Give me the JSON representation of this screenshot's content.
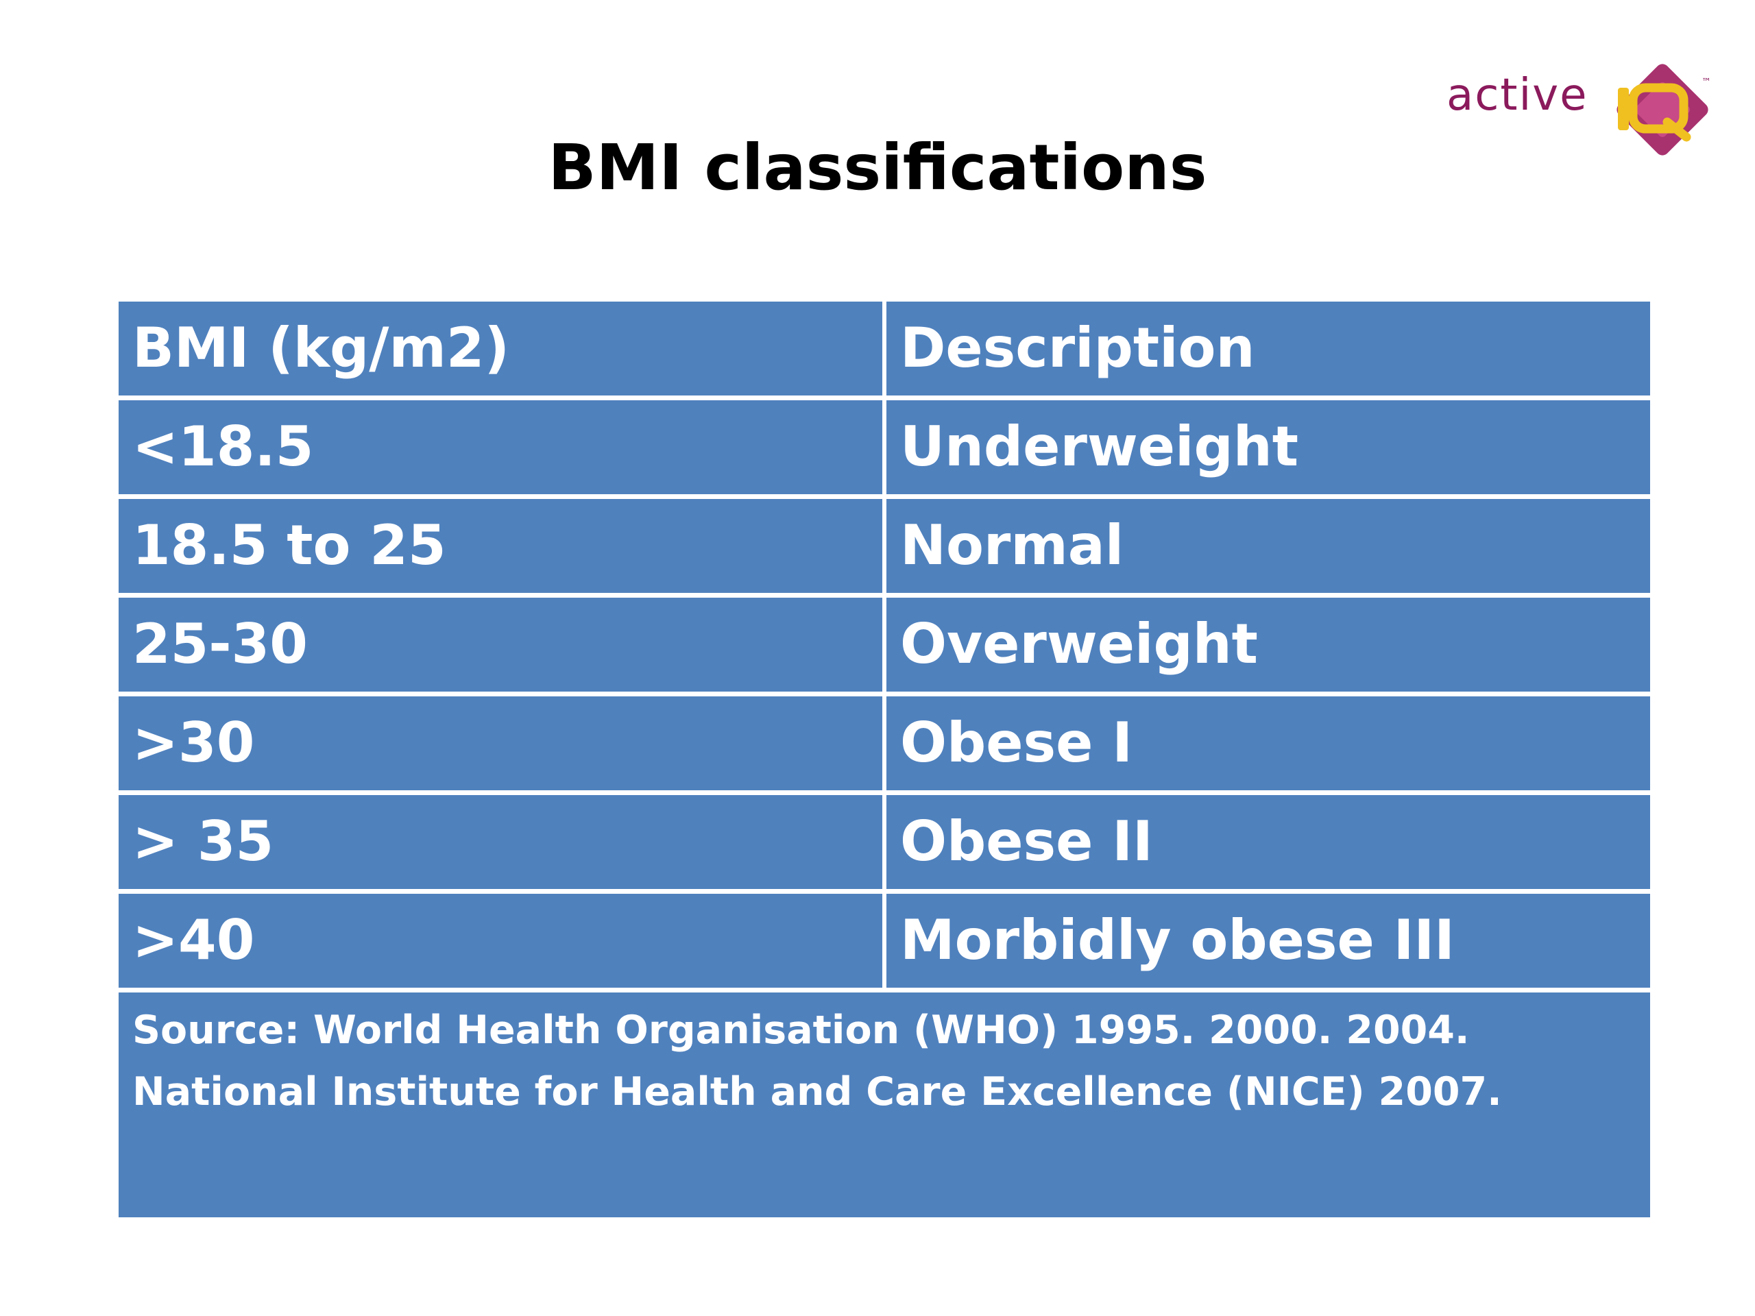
{
  "logo": {
    "text": "active",
    "mark": "IQ",
    "tm": "™",
    "brand_color": "#8b1a5c",
    "accent_color": "#f0c020"
  },
  "title": "BMI classifications",
  "table": {
    "header": {
      "col1": "BMI (kg/m2)",
      "col2": "Description"
    },
    "rows": [
      {
        "bmi": "<18.5",
        "description": "Underweight"
      },
      {
        "bmi": "18.5 to 25",
        "description": "Normal"
      },
      {
        "bmi": "25-30",
        "description": "Overweight"
      },
      {
        "bmi": ">30",
        "description": "Obese I"
      },
      {
        "bmi": "> 35",
        "description": "Obese II"
      },
      {
        "bmi": ">40",
        "description": "Morbidly obese III"
      }
    ],
    "source": "Source: World Health Organisation (WHO) 1995. 2000. 2004. National Institute for Health and Care Excellence (NICE) 2007."
  },
  "colors": {
    "cell_background": "#4f81bd",
    "cell_text": "#ffffff"
  }
}
